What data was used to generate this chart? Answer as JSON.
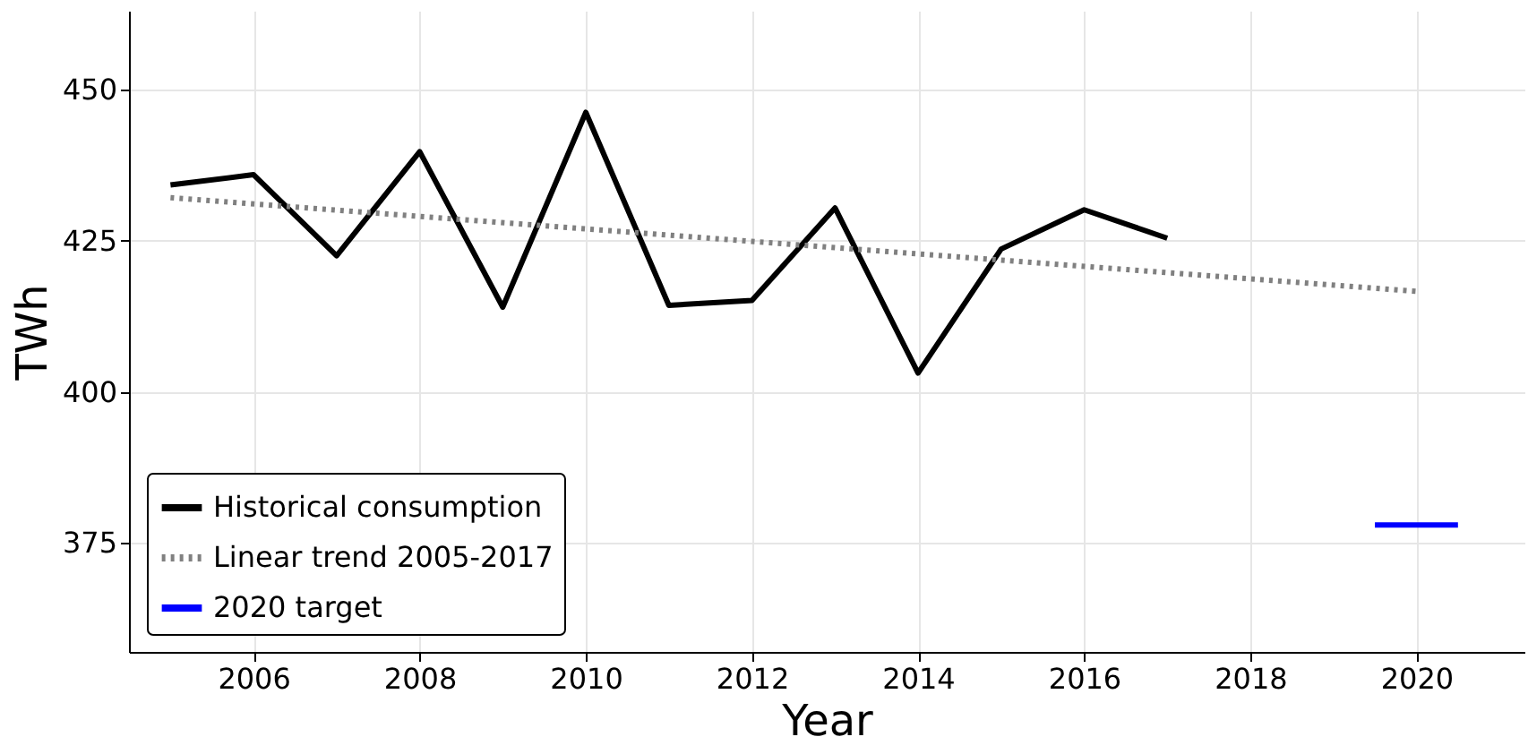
{
  "chart_data": {
    "type": "line",
    "xlabel": "Year",
    "ylabel": "TWh",
    "x": [
      2005,
      2006,
      2007,
      2008,
      2009,
      2010,
      2011,
      2012,
      2013,
      2014,
      2015,
      2016,
      2017
    ],
    "series": [
      {
        "name": "Historical consumption",
        "color": "#000000",
        "line_style": "solid",
        "values": [
          434.2,
          435.9,
          422.5,
          439.7,
          414.0,
          446.2,
          414.3,
          415.1,
          430.4,
          403.1,
          423.6,
          430.1,
          425.4
        ]
      },
      {
        "name": "Linear trend 2005-2017",
        "color": "#808080",
        "line_style": "dotted",
        "x": [
          2005,
          2020
        ],
        "values": [
          432.1,
          416.6
        ]
      },
      {
        "name": "2020 target",
        "color": "#0000ff",
        "line_style": "solid",
        "x": [
          2019.5,
          2020.5
        ],
        "values": [
          378.0,
          378.0
        ]
      }
    ],
    "xlim": [
      2004.5,
      2021.3
    ],
    "xticks": [
      2006,
      2008,
      2010,
      2012,
      2014,
      2016,
      2018,
      2020
    ],
    "ylim": [
      357,
      463
    ],
    "yticks": [
      375,
      400,
      425,
      450
    ],
    "grid": true,
    "legend": "bottom left",
    "marker": "none"
  }
}
